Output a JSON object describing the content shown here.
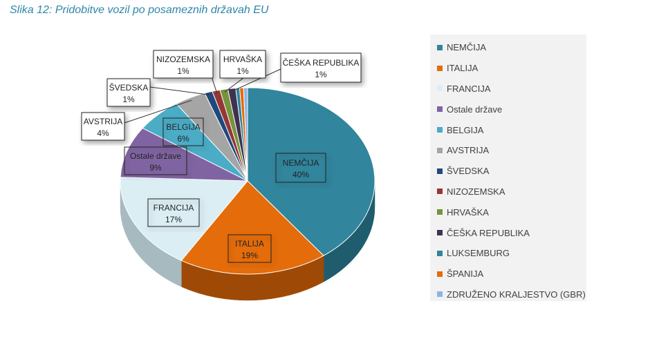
{
  "caption": "Slika 12: Pridobitve vozil po posameznih državah EU",
  "chart_data": {
    "type": "pie",
    "title": "",
    "slices": [
      {
        "name": "NEMČIJA",
        "value": 40,
        "label": "40%",
        "color": "#31859c",
        "side": "#1f5d6e"
      },
      {
        "name": "ITALIJA",
        "value": 19,
        "label": "19%",
        "color": "#e46c0a",
        "side": "#9e4a06"
      },
      {
        "name": "FRANCIJA",
        "value": 17,
        "label": "17%",
        "color": "#dbeef4",
        "side": "#a7bac0"
      },
      {
        "name": "Ostale države",
        "value": 9,
        "label": "9%",
        "color": "#8064a2",
        "side": "#584671"
      },
      {
        "name": "BELGIJA",
        "value": 6,
        "label": "6%",
        "color": "#4bacc6",
        "side": "#33788b"
      },
      {
        "name": "AVSTRIJA",
        "value": 4,
        "label": "4%",
        "color": "#a5a5a5",
        "side": "#737373"
      },
      {
        "name": "ŠVEDSKA",
        "value": 1,
        "label": "1%",
        "color": "#1f497d",
        "side": "#143256"
      },
      {
        "name": "NIZOZEMSKA",
        "value": 1,
        "label": "1%",
        "color": "#953735",
        "side": "#682625"
      },
      {
        "name": "HRVAŠKA",
        "value": 1,
        "label": "1%",
        "color": "#77933c",
        "side": "#53672a"
      },
      {
        "name": "ČEŠKA REPUBLIKA",
        "value": 1,
        "label": "1%",
        "color": "#403152",
        "side": "#2c2239"
      },
      {
        "name": "LUKSEMBURG",
        "value": 0.5,
        "label": "",
        "color": "#31859c",
        "side": "#1f5d6e"
      },
      {
        "name": "ŠPANIJA",
        "value": 0.5,
        "label": "",
        "color": "#e46c0a",
        "side": "#9e4a06"
      },
      {
        "name": "ZDRUŽENO KRALJESTVO (GBR)",
        "value": 0.5,
        "label": "",
        "color": "#8eb4e3",
        "side": "#637e9f"
      }
    ],
    "legend_position": "right"
  }
}
